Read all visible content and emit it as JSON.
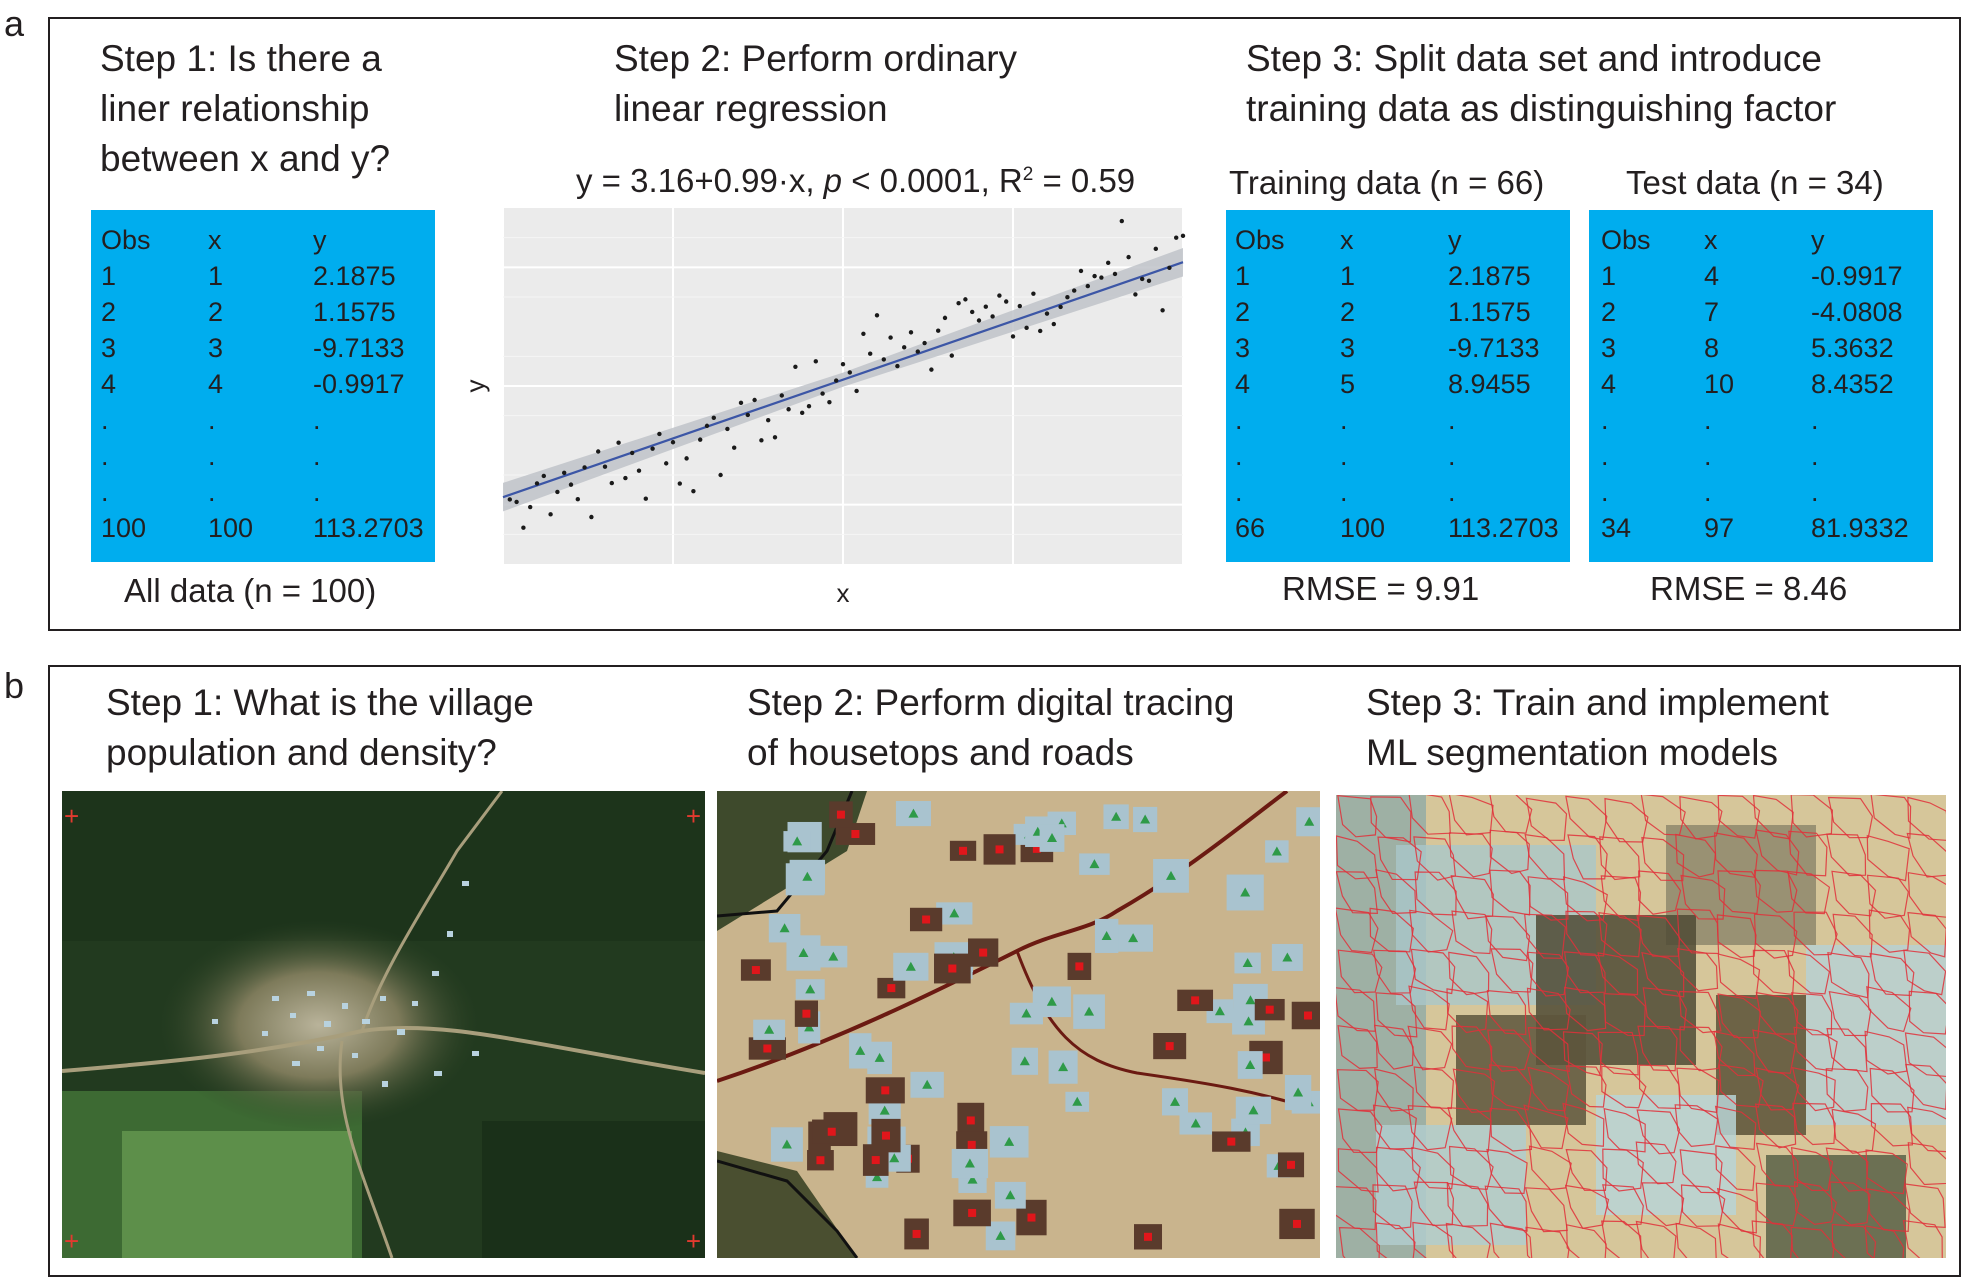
{
  "panel_a": {
    "letter": "a",
    "step1_title": "Step 1: Is there a\nliner relationship\nbetween x and y?",
    "step2_title": "Step 2: Perform ordinary\nlinear regression",
    "step3_title": "Step 3: Split data set and introduce\ntraining data as distinguishing factor",
    "all_data": {
      "caption": "All data (n = 100)",
      "headers": [
        "Obs",
        "x",
        "y"
      ],
      "rows": [
        [
          "1",
          "1",
          "2.1875"
        ],
        [
          "2",
          "2",
          "1.1575"
        ],
        [
          "3",
          "3",
          "-9.7133"
        ],
        [
          "4",
          "4",
          "-0.9917"
        ],
        [
          ".",
          ".",
          "."
        ],
        [
          ".",
          ".",
          "."
        ],
        [
          ".",
          ".",
          "."
        ],
        [
          "100",
          "100",
          "113.2703"
        ]
      ]
    },
    "regression": {
      "eq_prefix": "y = 3.16+0.99·x, ",
      "eq_p": "p",
      "eq_mid": " < 0.0001, R",
      "eq_sup": "2",
      "eq_end": " = 0.59"
    },
    "training": {
      "title": "Training data (n = 66)",
      "headers": [
        "Obs",
        "x",
        "y"
      ],
      "rows": [
        [
          "1",
          "1",
          "2.1875"
        ],
        [
          "2",
          "2",
          "1.1575"
        ],
        [
          "3",
          "3",
          "-9.7133"
        ],
        [
          "4",
          "5",
          "8.9455"
        ],
        [
          ".",
          ".",
          "."
        ],
        [
          ".",
          ".",
          "."
        ],
        [
          ".",
          ".",
          "."
        ],
        [
          "66",
          "100",
          "113.2703"
        ]
      ],
      "rmse": "RMSE = 9.91"
    },
    "test": {
      "title": "Test data (n = 34)",
      "headers": [
        "Obs",
        "x",
        "y"
      ],
      "rows": [
        [
          "1",
          "4",
          "-0.9917"
        ],
        [
          "2",
          "7",
          "-4.0808"
        ],
        [
          "3",
          "8",
          "5.3632"
        ],
        [
          "4",
          "10",
          "8.4352"
        ],
        [
          ".",
          ".",
          "."
        ],
        [
          ".",
          ".",
          "."
        ],
        [
          ".",
          ".",
          "."
        ],
        [
          "34",
          "97",
          "81.9332"
        ]
      ],
      "rmse": "RMSE = 8.46"
    }
  },
  "chart_data": {
    "type": "scatter",
    "xlabel": "x",
    "ylabel": "y",
    "grid": true,
    "xlim": [
      0,
      100
    ],
    "ylim": [
      -25,
      125
    ],
    "fit": {
      "intercept": 3.16,
      "slope": 0.99
    },
    "points": [
      [
        1,
        2.19
      ],
      [
        2,
        1.16
      ],
      [
        3,
        -9.71
      ],
      [
        4,
        -0.99
      ],
      [
        5,
        8.95
      ],
      [
        6,
        12.1
      ],
      [
        7,
        -4.08
      ],
      [
        8,
        5.36
      ],
      [
        9,
        13.4
      ],
      [
        10,
        8.44
      ],
      [
        11,
        2.3
      ],
      [
        12,
        15.7
      ],
      [
        13,
        -5.2
      ],
      [
        14,
        22.4
      ],
      [
        15,
        16.0
      ],
      [
        16,
        9.1
      ],
      [
        17,
        26.1
      ],
      [
        18,
        11.2
      ],
      [
        19,
        21.8
      ],
      [
        20,
        14.3
      ],
      [
        21,
        2.5
      ],
      [
        22,
        23.6
      ],
      [
        23,
        29.8
      ],
      [
        24,
        17.4
      ],
      [
        25,
        26.3
      ],
      [
        26,
        8.9
      ],
      [
        27,
        19.5
      ],
      [
        28,
        5.7
      ],
      [
        29,
        27.4
      ],
      [
        30,
        33.2
      ],
      [
        31,
        36.6
      ],
      [
        32,
        12.5
      ],
      [
        33,
        31.9
      ],
      [
        34,
        24.0
      ],
      [
        35,
        42.9
      ],
      [
        36,
        37.8
      ],
      [
        37,
        44.1
      ],
      [
        38,
        27.1
      ],
      [
        39,
        35.6
      ],
      [
        40,
        28.4
      ],
      [
        41,
        46.0
      ],
      [
        42,
        40.2
      ],
      [
        43,
        58.1
      ],
      [
        44,
        38.7
      ],
      [
        45,
        41.5
      ],
      [
        46,
        60.4
      ],
      [
        47,
        46.8
      ],
      [
        48,
        43.2
      ],
      [
        49,
        52.3
      ],
      [
        50,
        59.2
      ],
      [
        51,
        55.7
      ],
      [
        52,
        47.9
      ],
      [
        53,
        72.0
      ],
      [
        54,
        63.6
      ],
      [
        55,
        79.8
      ],
      [
        56,
        61.2
      ],
      [
        57,
        70.4
      ],
      [
        58,
        58.4
      ],
      [
        59,
        66.3
      ],
      [
        60,
        72.6
      ],
      [
        61,
        64.5
      ],
      [
        62,
        68.1
      ],
      [
        63,
        56.9
      ],
      [
        64,
        73.3
      ],
      [
        65,
        78.7
      ],
      [
        66,
        62.8
      ],
      [
        67,
        84.9
      ],
      [
        68,
        86.5
      ],
      [
        69,
        81.2
      ],
      [
        70,
        77.6
      ],
      [
        71,
        83.4
      ],
      [
        72,
        79.3
      ],
      [
        73,
        88.1
      ],
      [
        74,
        85.6
      ],
      [
        75,
        70.9
      ],
      [
        76,
        83.7
      ],
      [
        77,
        74.5
      ],
      [
        78,
        88.9
      ],
      [
        79,
        73.2
      ],
      [
        80,
        80.5
      ],
      [
        81,
        76.1
      ],
      [
        82,
        83.3
      ],
      [
        83,
        87.4
      ],
      [
        84,
        90.2
      ],
      [
        85,
        98.5
      ],
      [
        86,
        92.1
      ],
      [
        87,
        96.3
      ],
      [
        88,
        95.7
      ],
      [
        89,
        101.9
      ],
      [
        90,
        97.2
      ],
      [
        91,
        119.5
      ],
      [
        92,
        104.3
      ],
      [
        93,
        88.6
      ],
      [
        94,
        95.1
      ],
      [
        95,
        94.3
      ],
      [
        96,
        107.8
      ],
      [
        97,
        81.9
      ],
      [
        98,
        99.8
      ],
      [
        99,
        112.5
      ],
      [
        100,
        113.27
      ]
    ]
  },
  "panel_b": {
    "letter": "b",
    "step1_title": "Step 1: What is the village\npopulation and density?",
    "step2_title": "Step 2: Perform digital tracing\nof housetops and roads",
    "step3_title": "Step 3: Train and implement\nML segmentation models"
  }
}
